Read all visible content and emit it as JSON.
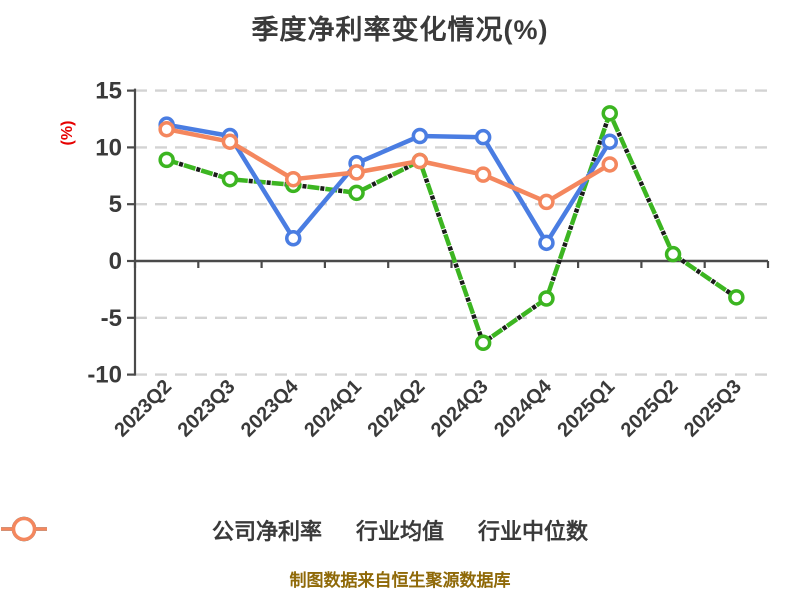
{
  "title": "季度净利率变化情况(%)",
  "footer": "制图数据来自恒生聚源数据库",
  "colors": {
    "company": "#3cb521",
    "industry_mean": "#4a7de2",
    "industry_median": "#f4875e",
    "grid": "#d3d3d3",
    "axis": "#4a4a4a",
    "text": "#3a3a3a",
    "ylabel_red": "#e60000",
    "footer_gold": "#8f6908",
    "marker_fill": "#ffffff"
  },
  "chart_data": {
    "type": "line",
    "title": "季度净利率变化情况(%)",
    "xlabel": "",
    "ylabel": "(%)",
    "categories": [
      "2023Q2",
      "2023Q3",
      "2023Q4",
      "2024Q1",
      "2024Q2",
      "2024Q3",
      "2024Q4",
      "2025Q1",
      "2025Q2",
      "2025Q3"
    ],
    "series": [
      {
        "name": "公司净利率",
        "color": "#3cb521",
        "line_style": "dashed",
        "values": [
          8.9,
          7.2,
          6.7,
          6.0,
          8.8,
          -7.2,
          -3.3,
          13.0,
          0.6,
          -3.2
        ]
      },
      {
        "name": "行业均值",
        "color": "#4a7de2",
        "line_style": "solid",
        "values": [
          12.0,
          11.0,
          2.0,
          8.6,
          11.0,
          10.9,
          1.6,
          10.5,
          null,
          null
        ]
      },
      {
        "name": "行业中位数",
        "color": "#f4875e",
        "line_style": "solid",
        "values": [
          11.6,
          10.5,
          7.2,
          7.8,
          8.8,
          7.6,
          5.2,
          8.5,
          null,
          null
        ]
      }
    ],
    "yticks": [
      15,
      10,
      5,
      0,
      -5,
      -10
    ],
    "ylim": [
      -10,
      15
    ],
    "grid": "horizontal-dashed",
    "x_tick_rotation": 45,
    "legend_position": "bottom",
    "markers": "circle-white-fill"
  }
}
